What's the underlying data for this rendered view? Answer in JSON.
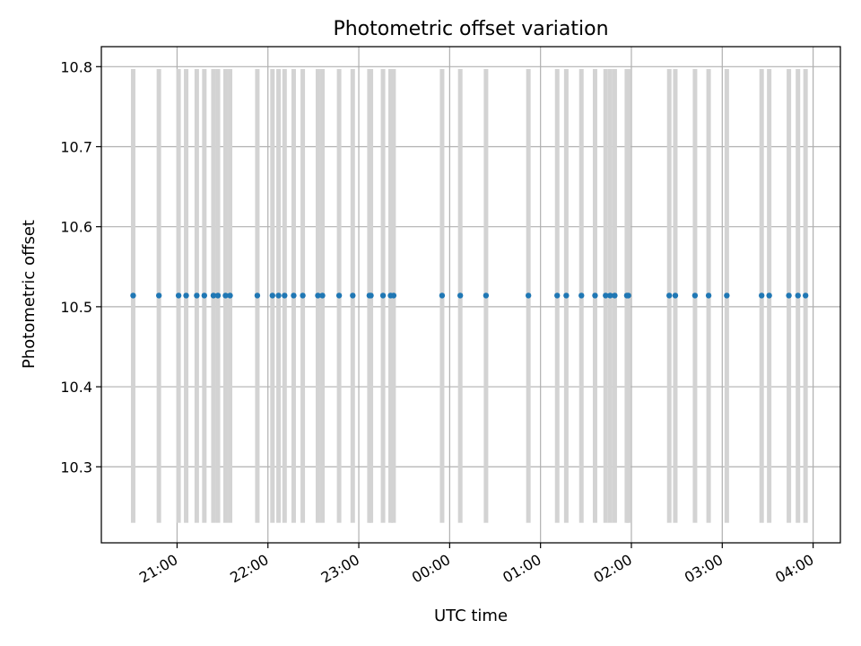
{
  "chart_data": {
    "type": "scatter",
    "title": "Photometric offset variation",
    "xlabel": "UTC time",
    "ylabel": "Photometric offset",
    "xlim": [
      "20:10",
      "04:18"
    ],
    "ylim": [
      10.205,
      10.825
    ],
    "x_ticks": [
      "21:00",
      "22:00",
      "23:00",
      "00:00",
      "01:00",
      "02:00",
      "03:00",
      "04:00"
    ],
    "y_ticks": [
      "10.3",
      "10.4",
      "10.5",
      "10.6",
      "10.7",
      "10.8"
    ],
    "grid": true,
    "point_color": "#1f77b4",
    "band_color": "#d3d3d3",
    "band_range": [
      10.23,
      10.797
    ],
    "y_value": 10.514,
    "times": [
      "20:31",
      "20:48",
      "21:01",
      "21:06",
      "21:13",
      "21:18",
      "21:24",
      "21:27",
      "21:32",
      "21:35",
      "21:53",
      "22:03",
      "22:07",
      "22:11",
      "22:17",
      "22:23",
      "22:33",
      "22:36",
      "22:47",
      "22:56",
      "23:07",
      "23:08",
      "23:16",
      "23:21",
      "23:23",
      "23:55",
      "00:07",
      "00:24",
      "00:52",
      "01:11",
      "01:17",
      "01:27",
      "01:36",
      "01:43",
      "01:46",
      "01:49",
      "01:57",
      "01:58",
      "02:25",
      "02:29",
      "02:42",
      "02:51",
      "03:03",
      "03:26",
      "03:31",
      "03:44",
      "03:50",
      "03:55"
    ]
  }
}
